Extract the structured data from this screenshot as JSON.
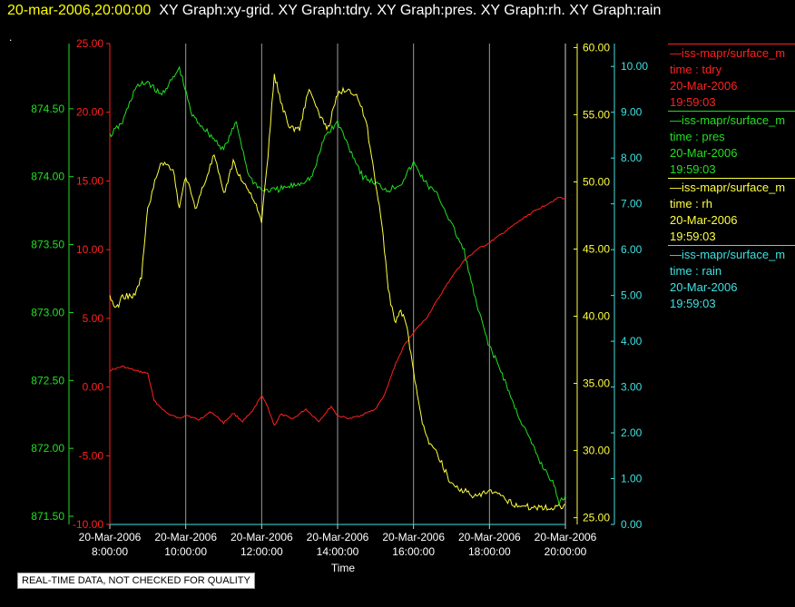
{
  "header": {
    "timestamp": "20-mar-2006,20:00:00",
    "graphs": "XY Graph:xy-grid.  XY Graph:tdry.  XY Graph:pres.  XY Graph:rh.  XY Graph:rain"
  },
  "disclaimer": "REAL-TIME DATA, NOT CHECKED FOR QUALITY",
  "legend": [
    {
      "name": "—iss-mapr/surface_m",
      "field": "time : tdry",
      "date": "20-Mar-2006",
      "time": "19:59:03",
      "color": "#ff2020"
    },
    {
      "name": "—iss-mapr/surface_m",
      "field": "time : pres",
      "date": "20-Mar-2006",
      "time": "19:59:03",
      "color": "#20e020"
    },
    {
      "name": "—iss-mapr/surface_m",
      "field": "time : rh",
      "date": "20-Mar-2006",
      "time": "19:59:03",
      "color": "#ffff40"
    },
    {
      "name": "—iss-mapr/surface_m",
      "field": "time : rain",
      "date": "20-Mar-2006",
      "time": "19:59:03",
      "color": "#40e0e0"
    }
  ],
  "chart_data": {
    "type": "line",
    "xlabel": "Time",
    "x_ticks": [
      {
        "date": "20-Mar-2006",
        "time": "8:00:00"
      },
      {
        "date": "20-Mar-2006",
        "time": "10:00:00"
      },
      {
        "date": "20-Mar-2006",
        "time": "12:00:00"
      },
      {
        "date": "20-Mar-2006",
        "time": "14:00:00"
      },
      {
        "date": "20-Mar-2006",
        "time": "16:00:00"
      },
      {
        "date": "20-Mar-2006",
        "time": "18:00:00"
      },
      {
        "date": "20-Mar-2006",
        "time": "20:00:00"
      }
    ],
    "xlim": [
      "2006-03-20 08:00",
      "2006-03-20 20:00"
    ],
    "grid": "vertical",
    "axes": [
      {
        "id": "pres",
        "color": "#20e020",
        "ylim": [
          871.44,
          874.98
        ],
        "ticks": [
          "871.50",
          "872.00",
          "872.50",
          "873.00",
          "873.50",
          "874.00",
          "874.50"
        ],
        "tick_values": [
          871.5,
          872.0,
          872.5,
          873.0,
          873.5,
          874.0,
          874.5
        ]
      },
      {
        "id": "tdry",
        "color": "#ff2020",
        "ylim": [
          -10,
          25
        ],
        "ticks": [
          "-10.00",
          "-5.00",
          "0.00",
          "5.00",
          "10.00",
          "15.00",
          "20.00",
          "25.00"
        ],
        "tick_values": [
          -10,
          -5,
          0,
          5,
          10,
          15,
          20,
          25
        ]
      },
      {
        "id": "rh",
        "color": "#ffff40",
        "ylim": [
          24.5,
          60.3
        ],
        "ticks": [
          "25.00",
          "30.00",
          "35.00",
          "40.00",
          "45.00",
          "50.00",
          "55.00",
          "60.00"
        ],
        "tick_values": [
          25,
          30,
          35,
          40,
          45,
          50,
          55,
          60
        ]
      },
      {
        "id": "rain",
        "color": "#40e0e0",
        "ylim": [
          0,
          10.5
        ],
        "ticks": [
          "0.00",
          "1.00",
          "2.00",
          "3.00",
          "4.00",
          "5.00",
          "6.00",
          "7.00",
          "8.00",
          "9.00",
          "10.00"
        ],
        "tick_values": [
          0,
          1,
          2,
          3,
          4,
          5,
          6,
          7,
          8,
          9,
          10
        ]
      }
    ],
    "series": [
      {
        "axis": "tdry",
        "color": "#ff2020",
        "x": [
          "08:00",
          "08:20",
          "08:40",
          "09:00",
          "09:10",
          "09:30",
          "09:50",
          "10:00",
          "10:20",
          "10:40",
          "11:00",
          "11:15",
          "11:30",
          "11:45",
          "12:00",
          "12:10",
          "12:20",
          "12:30",
          "12:50",
          "13:10",
          "13:30",
          "13:50",
          "14:00",
          "14:20",
          "14:40",
          "15:00",
          "15:15",
          "15:30",
          "15:45",
          "16:00",
          "16:20",
          "16:40",
          "17:00",
          "17:20",
          "17:40",
          "18:00",
          "18:30",
          "19:00",
          "19:30",
          "19:50",
          "20:00"
        ],
        "y": [
          1.2,
          1.5,
          1.2,
          1.0,
          -1.0,
          -1.9,
          -2.3,
          -2.0,
          -2.4,
          -1.8,
          -2.6,
          -1.9,
          -2.5,
          -1.8,
          -0.6,
          -1.5,
          -2.8,
          -2.0,
          -2.3,
          -1.6,
          -2.5,
          -1.4,
          -2.1,
          -2.3,
          -2.0,
          -1.6,
          -0.5,
          1.5,
          3.0,
          4.0,
          5.0,
          6.5,
          8.0,
          9.2,
          10.0,
          10.5,
          11.5,
          12.5,
          13.3,
          13.8,
          13.7
        ]
      },
      {
        "axis": "pres",
        "color": "#20e020",
        "x": [
          "08:00",
          "08:20",
          "08:40",
          "09:00",
          "09:20",
          "09:40",
          "09:50",
          "10:10",
          "10:40",
          "11:00",
          "11:20",
          "11:40",
          "12:00",
          "12:20",
          "12:40",
          "13:00",
          "13:20",
          "13:40",
          "14:00",
          "14:20",
          "14:40",
          "15:00",
          "15:20",
          "15:40",
          "16:00",
          "16:20",
          "16:40",
          "17:00",
          "17:20",
          "17:40",
          "18:00",
          "18:20",
          "18:40",
          "19:00",
          "19:20",
          "19:40",
          "19:50",
          "20:00"
        ],
        "y": [
          874.3,
          874.4,
          874.65,
          874.7,
          874.6,
          874.72,
          874.8,
          874.45,
          874.3,
          874.2,
          874.4,
          874.0,
          873.9,
          873.9,
          873.92,
          873.95,
          874.0,
          874.3,
          874.4,
          874.2,
          874.0,
          873.95,
          873.9,
          873.95,
          874.1,
          873.95,
          873.85,
          873.65,
          873.45,
          873.05,
          872.75,
          872.55,
          872.3,
          872.1,
          871.9,
          871.75,
          871.6,
          871.65
        ]
      },
      {
        "axis": "rh",
        "color": "#ffff40",
        "x": [
          "08:00",
          "08:10",
          "08:20",
          "08:40",
          "08:50",
          "09:00",
          "09:20",
          "09:40",
          "09:50",
          "10:00",
          "10:15",
          "10:30",
          "10:45",
          "11:00",
          "11:15",
          "11:30",
          "11:45",
          "12:00",
          "12:10",
          "12:20",
          "12:30",
          "12:45",
          "13:00",
          "13:15",
          "13:30",
          "13:45",
          "14:00",
          "14:15",
          "14:30",
          "14:45",
          "15:00",
          "15:10",
          "15:20",
          "15:30",
          "15:40",
          "15:50",
          "16:00",
          "16:10",
          "16:20",
          "16:40",
          "17:00",
          "17:20",
          "17:40",
          "18:00",
          "18:20",
          "18:40",
          "19:00",
          "19:20",
          "19:40",
          "20:00"
        ],
        "y": [
          41.5,
          40.5,
          41.5,
          41.5,
          43.0,
          48.0,
          51.5,
          51.0,
          48.0,
          50.5,
          48.0,
          50.0,
          52.0,
          49.0,
          51.5,
          50.0,
          49.0,
          47.0,
          52.0,
          58.0,
          56.0,
          54.0,
          54.0,
          57.0,
          55.0,
          54.0,
          56.5,
          57.0,
          56.5,
          54.5,
          50.0,
          47.0,
          42.0,
          39.5,
          40.5,
          39.0,
          36.0,
          33.0,
          31.0,
          29.5,
          27.5,
          27.0,
          26.5,
          27.0,
          26.5,
          26.0,
          25.8,
          25.8,
          25.7,
          26.0
        ]
      },
      {
        "axis": "rain",
        "color": "#40e0e0",
        "x": [
          "08:00",
          "20:00"
        ],
        "y": [
          0.0,
          0.0
        ]
      }
    ]
  }
}
